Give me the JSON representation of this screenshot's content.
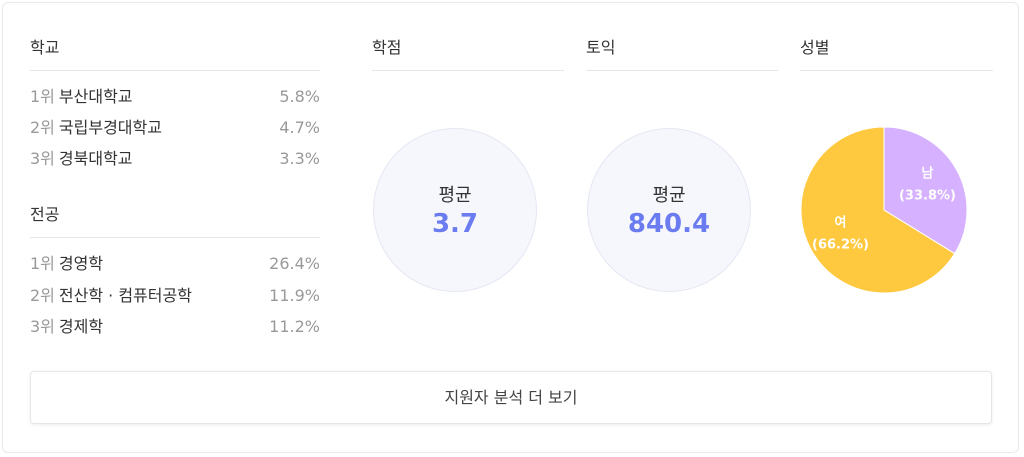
{
  "school": {
    "title": "학교",
    "items": [
      {
        "rank": "1위",
        "name": "부산대학교",
        "pct": "5.8%"
      },
      {
        "rank": "2위",
        "name": "국립부경대학교",
        "pct": "4.7%"
      },
      {
        "rank": "3위",
        "name": "경북대학교",
        "pct": "3.3%"
      }
    ]
  },
  "major": {
    "title": "전공",
    "items": [
      {
        "rank": "1위",
        "name": "경영학",
        "pct": "26.4%"
      },
      {
        "rank": "2위",
        "name": "전산학 · 컴퓨터공학",
        "pct": "11.9%"
      },
      {
        "rank": "3위",
        "name": "경제학",
        "pct": "11.2%"
      }
    ]
  },
  "gpa": {
    "title": "학점",
    "label": "평균",
    "value": "3.7"
  },
  "toeic": {
    "title": "토익",
    "label": "평균",
    "value": "840.4"
  },
  "gender": {
    "title": "성별",
    "chart_data": {
      "type": "pie",
      "slices": [
        {
          "label": "남",
          "value": 33.8,
          "display": "(33.8%)",
          "color": "#d6b1ff"
        },
        {
          "label": "여",
          "value": 66.2,
          "display": "(66.2%)",
          "color": "#ffc93f"
        }
      ]
    }
  },
  "more_button": "지원자 분석 더 보기"
}
